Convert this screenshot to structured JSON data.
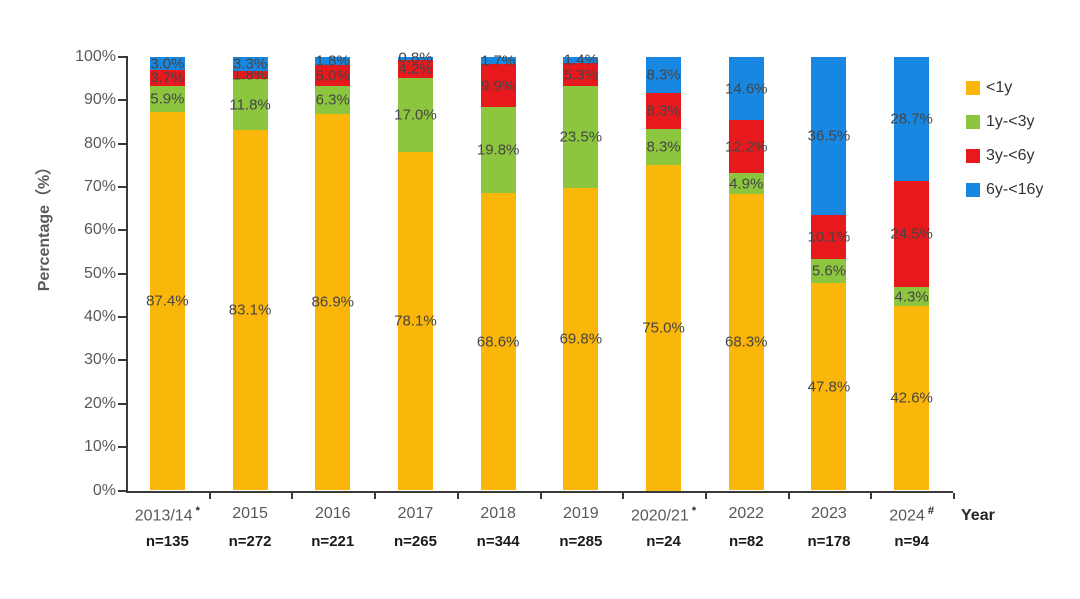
{
  "chart_data": {
    "type": "bar",
    "stacked": true,
    "title": "",
    "xlabel": "Year",
    "ylabel": "Percentage（%）",
    "ylim": [
      0,
      100
    ],
    "grid": false,
    "legend_position": "right",
    "ytick_labels": [
      "0%",
      "10%",
      "20%",
      "30%",
      "40%",
      "50%",
      "60%",
      "70%",
      "80%",
      "90%",
      "100%"
    ],
    "categories": [
      {
        "year": "2013/14",
        "marker": "*",
        "n_label": "n=135"
      },
      {
        "year": "2015",
        "marker": "",
        "n_label": "n=272"
      },
      {
        "year": "2016",
        "marker": "",
        "n_label": "n=221"
      },
      {
        "year": "2017",
        "marker": "",
        "n_label": "n=265"
      },
      {
        "year": "2018",
        "marker": "",
        "n_label": "n=344"
      },
      {
        "year": "2019",
        "marker": "",
        "n_label": "n=285"
      },
      {
        "year": "2020/21",
        "marker": "*",
        "n_label": "n=24"
      },
      {
        "year": "2022",
        "marker": "",
        "n_label": "n=82"
      },
      {
        "year": "2023",
        "marker": "",
        "n_label": "n=178"
      },
      {
        "year": "2024",
        "marker": "#",
        "n_label": "n=94"
      }
    ],
    "series": [
      {
        "name": "<1y",
        "color": "#FBB60A",
        "values": [
          87.4,
          83.1,
          86.9,
          78.1,
          68.6,
          69.8,
          75.0,
          68.3,
          47.8,
          42.6
        ],
        "labels": [
          "87.4%",
          "83.1%",
          "86.9%",
          "78.1%",
          "68.6%",
          "69.8%",
          "75.0%",
          "68.3%",
          "47.8%",
          "42.6%"
        ]
      },
      {
        "name": "1y-<3y",
        "color": "#8CC63E",
        "values": [
          5.9,
          11.8,
          6.3,
          17.0,
          19.8,
          23.5,
          8.3,
          4.9,
          5.6,
          4.3
        ],
        "labels": [
          "5.9%",
          "11.8%",
          "6.3%",
          "17.0%",
          "19.8%",
          "23.5%",
          "8.3%",
          "4.9%",
          "5.6%",
          "4.3%"
        ]
      },
      {
        "name": "3y-<6y",
        "color": "#E8191D",
        "values": [
          3.7,
          1.8,
          5.0,
          4.2,
          9.9,
          5.3,
          8.3,
          12.2,
          10.1,
          24.5
        ],
        "labels": [
          "3.7%",
          "1.8%",
          "5.0%",
          "4.2%",
          "9.9%",
          "5.3%",
          "8.3%",
          "12.2%",
          "10.1%",
          "24.5%"
        ]
      },
      {
        "name": "6y-<16y",
        "color": "#1787E1",
        "values": [
          3.0,
          3.3,
          1.8,
          0.8,
          1.7,
          1.4,
          8.3,
          14.6,
          36.5,
          28.7
        ],
        "labels": [
          "3.0%",
          "3.3%",
          "1.8%",
          "0.8%",
          "1.7%",
          "1.4%",
          "8.3%",
          "14.6%",
          "36.5%",
          "28.7%"
        ]
      }
    ]
  }
}
